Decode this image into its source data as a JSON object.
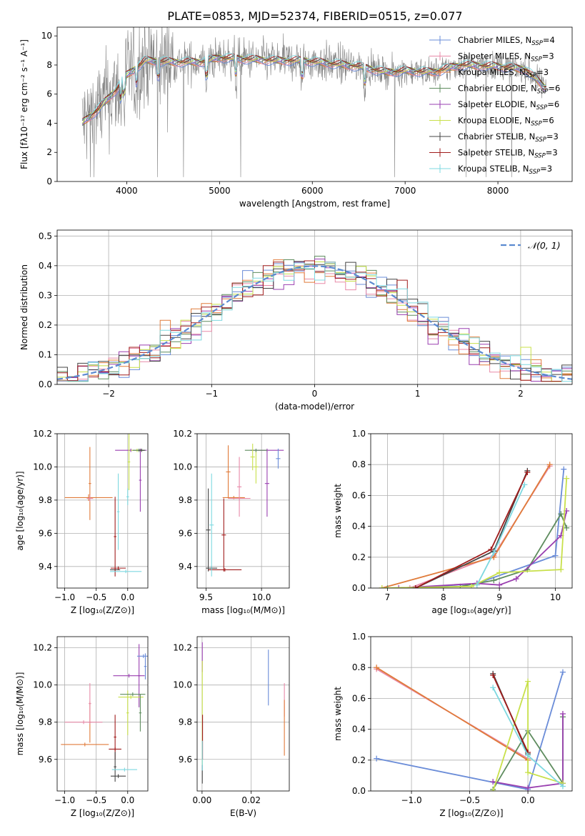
{
  "figure": {
    "title": "PLATE=0853, MJD=52374, FIBERID=0515, z=0.077",
    "palette": [
      "#6a8cd8",
      "#e88aa8",
      "#e07b3a",
      "#5e8c5e",
      "#9a3fb0",
      "#c8e04a",
      "#444444",
      "#a01c1c",
      "#7ed8e0"
    ]
  },
  "chart_data": [
    {
      "id": "spectrum",
      "type": "line",
      "title": "PLATE=0853, MJD=52374, FIBERID=0515, z=0.077",
      "xlabel": "wavelength [Angstrom, rest frame]",
      "ylabel": "Flux [fλ10⁻¹⁷ erg cm⁻² s⁻¹ A⁻¹]",
      "xlim": [
        3250,
        8800
      ],
      "ylim": [
        0,
        10.6
      ],
      "xticks": [
        4000,
        5000,
        6000,
        7000,
        8000
      ],
      "yticks": [
        0,
        2,
        4,
        6,
        8,
        10
      ],
      "grid": false,
      "legend_position": "top-right",
      "data_color": "#808080",
      "legend": [
        "Chabrier MILES, N_SSP=4",
        "Salpeter MILES, N_SSP=3",
        "Kroupa MILES, N_SSP=3",
        "Chabrier ELODIE, N_SSP=6",
        "Salpeter ELODIE, N_SSP=6",
        "Kroupa ELODIE, N_SSP=6",
        "Chabrier STELIB, N_SSP=3",
        "Salpeter STELIB, N_SSP=3",
        "Kroupa STELIB, N_SSP=3"
      ],
      "continuum_knots": [
        [
          3520,
          4.0
        ],
        [
          3700,
          5.0
        ],
        [
          3900,
          6.4
        ],
        [
          4000,
          7.3
        ],
        [
          4200,
          8.3
        ],
        [
          4500,
          8.2
        ],
        [
          4800,
          8.2
        ],
        [
          5000,
          8.5
        ],
        [
          5300,
          8.4
        ],
        [
          5600,
          8.3
        ],
        [
          5900,
          8.3
        ],
        [
          6200,
          8.1
        ],
        [
          6500,
          7.9
        ],
        [
          6800,
          7.5
        ],
        [
          7000,
          7.6
        ],
        [
          7300,
          7.5
        ],
        [
          7600,
          8.0
        ],
        [
          8000,
          7.9
        ],
        [
          8300,
          7.7
        ],
        [
          8500,
          6.5
        ]
      ]
    },
    {
      "id": "residuals",
      "type": "histogram",
      "xlabel": "(data-model)/error",
      "ylabel": "Normed distribution",
      "xlim": [
        -2.5,
        2.5
      ],
      "ylim": [
        0,
        0.52
      ],
      "xticks": [
        -2,
        -1,
        0,
        1,
        2
      ],
      "yticks": [
        0.0,
        0.1,
        0.2,
        0.3,
        0.4,
        0.5
      ],
      "grid": true,
      "legend_position": "top-right",
      "reference_curve": "𝒩(0, 1)",
      "reference_color": "#5b8ad0",
      "bin_width": 0.1
    },
    {
      "id": "age-vs-Z",
      "type": "errorbar",
      "xlabel": "Z [log₁₀(Z/Z⊙)]",
      "ylabel": "age  [log₁₀(age/yr)]",
      "xlim": [
        -1.12,
        0.32
      ],
      "ylim": [
        9.27,
        10.2
      ],
      "xticks": [
        -1.0,
        -0.5,
        0.0
      ],
      "yticks": [
        9.4,
        9.6,
        9.8,
        10.0,
        10.2
      ],
      "grid": true,
      "points": [
        {
          "c": 2,
          "x": -0.62,
          "xerr": 0.38,
          "y": 9.815,
          "yerr": 0.02
        },
        {
          "c": 2,
          "x": -0.6,
          "xerr": 0.02,
          "y": 9.9,
          "yerr": 0.22
        },
        {
          "c": 1,
          "x": -0.6,
          "xerr": 0.05,
          "y": 9.81,
          "yerr": 0.02
        },
        {
          "c": 6,
          "x": -0.2,
          "xerr": 0.08,
          "y": 9.38,
          "yerr": 0.01
        },
        {
          "c": 7,
          "x": -0.2,
          "xerr": 0.02,
          "y": 9.58,
          "yerr": 0.24
        },
        {
          "c": 7,
          "x": -0.15,
          "xerr": 0.12,
          "y": 9.39,
          "yerr": 0.01
        },
        {
          "c": 8,
          "x": -0.03,
          "xerr": 0.25,
          "y": 9.37,
          "yerr": 0.01
        },
        {
          "c": 8,
          "x": -0.15,
          "xerr": 0.02,
          "y": 9.73,
          "yerr": 0.23
        },
        {
          "c": 8,
          "x": 0.0,
          "xerr": 0.02,
          "y": 9.82,
          "yerr": 0.05
        },
        {
          "c": 4,
          "x": 0.05,
          "xerr": 0.25,
          "y": 10.1,
          "yerr": 0.01
        },
        {
          "c": 4,
          "x": 0.2,
          "xerr": 0.02,
          "y": 9.92,
          "yerr": 0.19
        },
        {
          "c": 5,
          "x": 0.02,
          "xerr": 0.02,
          "y": 10.03,
          "yerr": 0.17
        },
        {
          "c": 5,
          "x": 0.15,
          "xerr": 0.1,
          "y": 10.1,
          "yerr": 0.01
        },
        {
          "c": 3,
          "x": 0.18,
          "xerr": 0.1,
          "y": 10.1,
          "yerr": 0.01
        },
        {
          "c": 6,
          "x": 0.22,
          "xerr": 0.05,
          "y": 10.1,
          "yerr": 0.01
        }
      ]
    },
    {
      "id": "age-vs-mass",
      "type": "errorbar",
      "xlabel": "mass [log₁₀(M/M⊙)]",
      "ylabel": "",
      "xlim": [
        9.42,
        10.25
      ],
      "ylim": [
        9.27,
        10.2
      ],
      "xticks": [
        9.5,
        10.0
      ],
      "yticks": [
        9.4,
        9.6,
        9.8,
        10.0,
        10.2
      ],
      "grid": true,
      "points": [
        {
          "c": 6,
          "x": 9.52,
          "xerr": 0.02,
          "y": 9.62,
          "yerr": 0.25
        },
        {
          "c": 6,
          "x": 9.55,
          "xerr": 0.05,
          "y": 9.39,
          "yerr": 0.01
        },
        {
          "c": 7,
          "x": 9.67,
          "xerr": 0.15,
          "y": 9.38,
          "yerr": 0.01
        },
        {
          "c": 7,
          "x": 9.66,
          "xerr": 0.02,
          "y": 9.59,
          "yerr": 0.22
        },
        {
          "c": 8,
          "x": 9.55,
          "xerr": 0.02,
          "y": 9.65,
          "yerr": 0.31
        },
        {
          "c": 2,
          "x": 9.7,
          "xerr": 0.02,
          "y": 9.97,
          "yerr": 0.16
        },
        {
          "c": 2,
          "x": 9.75,
          "xerr": 0.1,
          "y": 9.815,
          "yerr": 0.01
        },
        {
          "c": 1,
          "x": 9.8,
          "xerr": 0.02,
          "y": 9.88,
          "yerr": 0.18
        },
        {
          "c": 1,
          "x": 9.8,
          "xerr": 0.1,
          "y": 9.81,
          "yerr": 0.01
        },
        {
          "c": 4,
          "x": 10.05,
          "xerr": 0.02,
          "y": 9.9,
          "yerr": 0.2
        },
        {
          "c": 4,
          "x": 10.05,
          "xerr": 0.15,
          "y": 10.1,
          "yerr": 0.01
        },
        {
          "c": 5,
          "x": 9.95,
          "xerr": 0.02,
          "y": 10.0,
          "yerr": 0.1
        },
        {
          "c": 3,
          "x": 9.95,
          "xerr": 0.1,
          "y": 10.1,
          "yerr": 0.01
        },
        {
          "c": 0,
          "x": 10.15,
          "xerr": 0.02,
          "y": 10.05,
          "yerr": 0.06
        },
        {
          "c": 5,
          "x": 9.92,
          "xerr": 0.02,
          "y": 10.06,
          "yerr": 0.08
        }
      ]
    },
    {
      "id": "weight-vs-age",
      "type": "line",
      "xlabel": "age  [log₁₀(age/yr)]",
      "ylabel": "mass weight",
      "xlim": [
        6.7,
        10.3
      ],
      "ylim": [
        0.0,
        1.0
      ],
      "xticks": [
        7,
        8,
        9,
        10
      ],
      "yticks": [
        0.0,
        0.2,
        0.4,
        0.6,
        0.8,
        1.0
      ],
      "grid": true,
      "series": [
        {
          "c": 0,
          "x": [
            7.5,
            8.6,
            10.0,
            10.15
          ],
          "y": [
            0.0,
            0.03,
            0.21,
            0.77
          ]
        },
        {
          "c": 1,
          "x": [
            7.4,
            8.9,
            9.9
          ],
          "y": [
            0.0,
            0.21,
            0.79
          ]
        },
        {
          "c": 2,
          "x": [
            6.9,
            8.9,
            9.9
          ],
          "y": [
            0.0,
            0.2,
            0.8
          ]
        },
        {
          "c": 3,
          "x": [
            7.0,
            8.3,
            8.9,
            9.5,
            10.1,
            10.2
          ],
          "y": [
            0.0,
            0.01,
            0.05,
            0.12,
            0.48,
            0.39
          ]
        },
        {
          "c": 4,
          "x": [
            7.2,
            8.6,
            9.0,
            9.3,
            10.1,
            10.2
          ],
          "y": [
            0.0,
            0.03,
            0.02,
            0.06,
            0.34,
            0.5
          ]
        },
        {
          "c": 5,
          "x": [
            6.9,
            8.5,
            9.0,
            10.1,
            10.2
          ],
          "y": [
            0.0,
            0.01,
            0.1,
            0.12,
            0.71
          ]
        },
        {
          "c": 6,
          "x": [
            7.5,
            8.9,
            9.5
          ],
          "y": [
            0.0,
            0.24,
            0.76
          ]
        },
        {
          "c": 7,
          "x": [
            7.5,
            8.85,
            9.5
          ],
          "y": [
            0.0,
            0.25,
            0.75
          ]
        },
        {
          "c": 8,
          "x": [
            8.6,
            8.9,
            9.45
          ],
          "y": [
            0.02,
            0.23,
            0.67
          ]
        }
      ]
    },
    {
      "id": "mass-vs-Z",
      "type": "errorbar",
      "xlabel": "Z [log₁₀(Z/Z⊙)]",
      "ylabel": "mass [log₁₀(M/M⊙)]",
      "xlim": [
        -1.12,
        0.32
      ],
      "ylim": [
        9.43,
        10.26
      ],
      "xticks": [
        -1.0,
        -0.5,
        0.0
      ],
      "yticks": [
        9.6,
        9.8,
        10.0,
        10.2
      ],
      "grid": true,
      "points": [
        {
          "c": 2,
          "x": -0.68,
          "xerr": 0.38,
          "y": 9.68,
          "yerr": 0.01
        },
        {
          "c": 2,
          "x": -0.6,
          "xerr": 0.02,
          "y": 9.8,
          "yerr": 0.11
        },
        {
          "c": 1,
          "x": -0.7,
          "xerr": 0.3,
          "y": 9.8,
          "yerr": 0.01
        },
        {
          "c": 1,
          "x": -0.6,
          "xerr": 0.02,
          "y": 9.9,
          "yerr": 0.11
        },
        {
          "c": 7,
          "x": -0.2,
          "xerr": 0.1,
          "y": 9.655,
          "yerr": 0.01
        },
        {
          "c": 7,
          "x": -0.2,
          "xerr": 0.02,
          "y": 9.72,
          "yerr": 0.12
        },
        {
          "c": 6,
          "x": -0.15,
          "xerr": 0.12,
          "y": 9.51,
          "yerr": 0.01
        },
        {
          "c": 6,
          "x": -0.2,
          "xerr": 0.02,
          "y": 9.56,
          "yerr": 0.08
        },
        {
          "c": 8,
          "x": -0.05,
          "xerr": 0.2,
          "y": 9.545,
          "yerr": 0.01
        },
        {
          "c": 4,
          "x": 0.02,
          "xerr": 0.25,
          "y": 10.05,
          "yerr": 0.01
        },
        {
          "c": 4,
          "x": 0.18,
          "xerr": 0.02,
          "y": 10.05,
          "yerr": 0.17
        },
        {
          "c": 5,
          "x": 0.05,
          "xerr": 0.2,
          "y": 9.935,
          "yerr": 0.01
        },
        {
          "c": 5,
          "x": 0.0,
          "xerr": 0.02,
          "y": 9.85,
          "yerr": 0.12
        },
        {
          "c": 3,
          "x": 0.08,
          "xerr": 0.2,
          "y": 9.95,
          "yerr": 0.01
        },
        {
          "c": 3,
          "x": 0.2,
          "xerr": 0.02,
          "y": 9.85,
          "yerr": 0.1
        },
        {
          "c": 0,
          "x": 0.25,
          "xerr": 0.1,
          "y": 10.155,
          "yerr": 0.01
        },
        {
          "c": 0,
          "x": 0.28,
          "xerr": 0.02,
          "y": 10.1,
          "yerr": 0.07
        }
      ]
    },
    {
      "id": "mass-vs-EBV",
      "type": "errorbar",
      "xlabel": "E(B-V)",
      "ylabel": "",
      "xlim": [
        -0.002,
        0.0355
      ],
      "ylim": [
        9.43,
        10.26
      ],
      "xticks": [
        0.0,
        0.02
      ],
      "yticks": [
        9.6,
        9.8,
        10.0,
        10.2
      ],
      "grid": true,
      "points": [
        {
          "c": 0,
          "x": 0.027,
          "xerr": 0.0,
          "y": 10.04,
          "yerr": 0.15
        },
        {
          "c": 1,
          "x": 0.0335,
          "xerr": 0.0,
          "y": 9.92,
          "yerr": 0.09
        },
        {
          "c": 2,
          "x": 0.0335,
          "xerr": 0.0,
          "y": 9.77,
          "yerr": 0.15
        },
        {
          "c": 4,
          "x": 0.0001,
          "xerr": 0.0,
          "y": 10.15,
          "yerr": 0.08
        },
        {
          "c": 5,
          "x": 0.0001,
          "xerr": 0.0,
          "y": 9.85,
          "yerr": 0.28
        },
        {
          "c": 6,
          "x": 0.0001,
          "xerr": 0.0,
          "y": 9.52,
          "yerr": 0.05
        },
        {
          "c": 7,
          "x": 0.0002,
          "xerr": 0.0,
          "y": 9.72,
          "yerr": 0.12
        },
        {
          "c": 8,
          "x": 0.0001,
          "xerr": 0.0,
          "y": 9.62,
          "yerr": 0.08
        }
      ]
    },
    {
      "id": "weight-vs-Z",
      "type": "line",
      "xlabel": "Z [log₁₀(Z/Z⊙)]",
      "ylabel": "mass weight",
      "xlim": [
        -1.35,
        0.38
      ],
      "ylim": [
        0.0,
        1.0
      ],
      "xticks": [
        -1.0,
        -0.5,
        0.0
      ],
      "yticks": [
        0.0,
        0.2,
        0.4,
        0.6,
        0.8,
        1.0
      ],
      "grid": true,
      "series": [
        {
          "c": 0,
          "x": [
            -1.3,
            0.0,
            0.3
          ],
          "y": [
            0.21,
            0.01,
            0.77
          ]
        },
        {
          "c": 1,
          "x": [
            -1.3,
            0.0
          ],
          "y": [
            0.79,
            0.21
          ]
        },
        {
          "c": 2,
          "x": [
            -1.3,
            0.0
          ],
          "y": [
            0.8,
            0.2
          ]
        },
        {
          "c": 3,
          "x": [
            -0.3,
            0.0,
            0.3,
            0.3
          ],
          "y": [
            0.01,
            0.39,
            0.05,
            0.48
          ]
        },
        {
          "c": 4,
          "x": [
            -0.3,
            0.0,
            0.3,
            0.3
          ],
          "y": [
            0.06,
            0.02,
            0.05,
            0.5
          ]
        },
        {
          "c": 5,
          "x": [
            -0.3,
            0.0,
            0.0,
            0.3
          ],
          "y": [
            0.0,
            0.71,
            0.12,
            0.05
          ]
        },
        {
          "c": 6,
          "x": [
            -0.3,
            0.0
          ],
          "y": [
            0.76,
            0.24
          ]
        },
        {
          "c": 7,
          "x": [
            -0.3,
            0.0
          ],
          "y": [
            0.75,
            0.25
          ]
        },
        {
          "c": 8,
          "x": [
            -0.3,
            0.0,
            0.3
          ],
          "y": [
            0.67,
            0.23,
            0.03
          ]
        }
      ]
    }
  ]
}
